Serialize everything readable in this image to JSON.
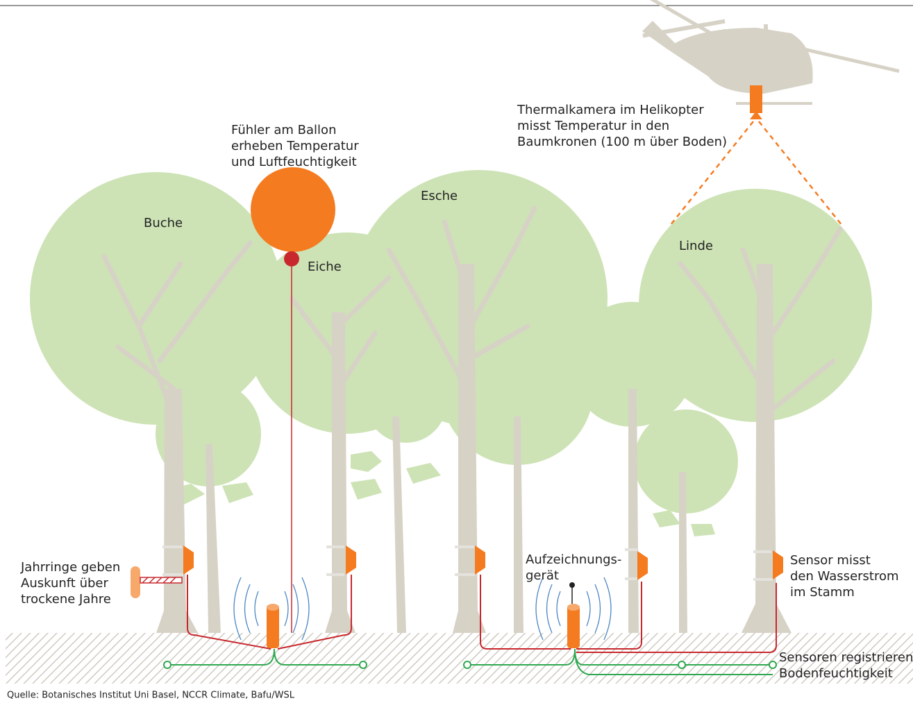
{
  "labels": {
    "balloon": [
      "Fühler am Ballon",
      "erheben Temperatur",
      "und Luftfeuchtigkeit"
    ],
    "camera": [
      "Thermalkamera im Helikopter",
      "misst Temperatur in den",
      "Baumkronen (100 m über Boden)"
    ],
    "rings": [
      "Jahrringe geben",
      "Auskunft über",
      "trockene Jahre"
    ],
    "recorder": [
      "Aufzeichnungs-",
      "gerät"
    ],
    "sap_sensor": [
      "Sensor misst",
      "den Wasserstrom",
      "im Stamm"
    ],
    "soil_sensors": [
      "Sensoren registrieren",
      "Bodenfeuchtigkeit"
    ]
  },
  "trees": [
    "Buche",
    "Eiche",
    "Esche",
    "Linde"
  ],
  "source": "Quelle: Botanisches Institut Uni Basel, NCCR Climate, Bafu/WSL"
}
